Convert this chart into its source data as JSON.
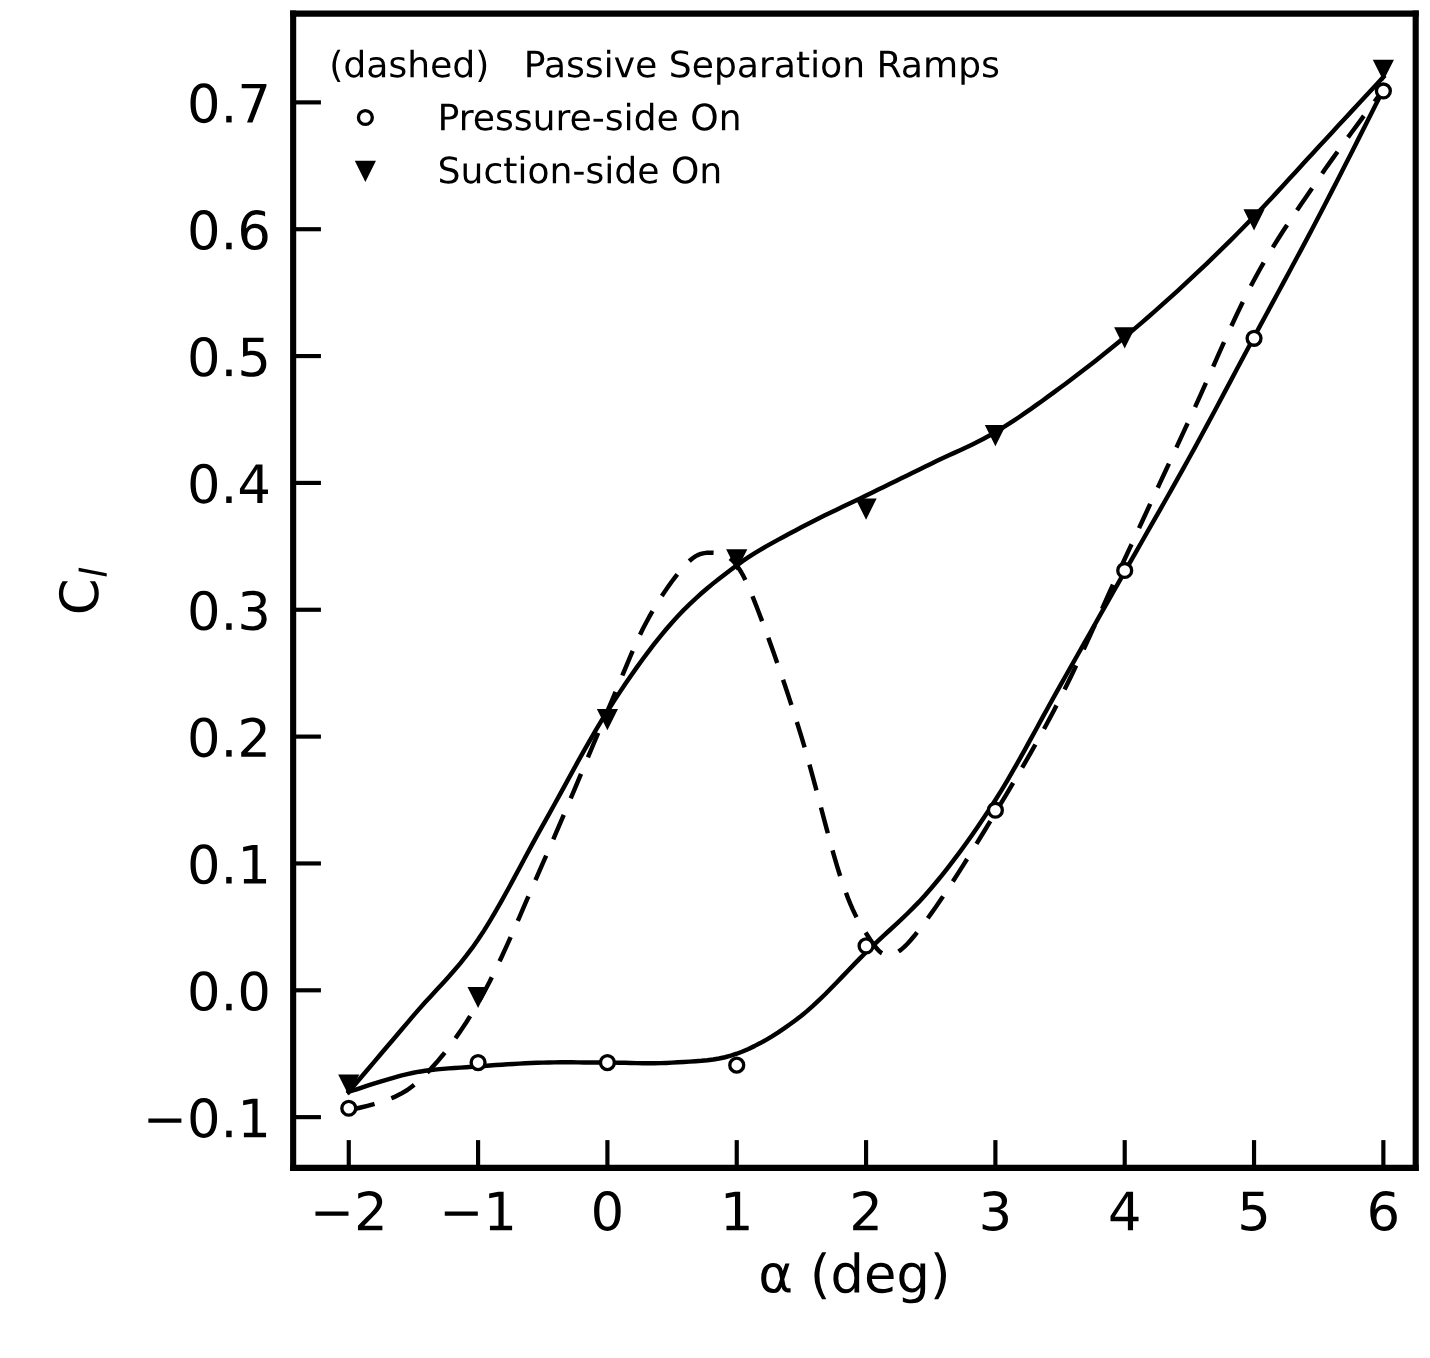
{
  "chart_data": {
    "type": "scatter",
    "xlabel": "α (deg)",
    "ylabel": "C$_{l}$",
    "legend_title": "(dashed)   Passive Separation Ramps",
    "legend": "top left",
    "grid": false,
    "xlim": [
      -2.43,
      6.25
    ],
    "ylim": [
      -0.14,
      0.77
    ],
    "xticks": [
      -2,
      -1,
      0,
      1,
      2,
      3,
      4,
      5,
      6
    ],
    "yticks": [
      {
        "value": -0.1,
        "label": "−0.1"
      },
      {
        "value": 0.0,
        "label": "0.0"
      },
      {
        "value": 0.1,
        "label": "0.1"
      },
      {
        "value": 0.2,
        "label": "0.2"
      },
      {
        "value": 0.3,
        "label": "0.3"
      },
      {
        "value": 0.4,
        "label": "0.4"
      },
      {
        "value": 0.5,
        "label": "0.5"
      },
      {
        "value": 0.6,
        "label": "0.6"
      },
      {
        "value": 0.7,
        "label": "0.7"
      }
    ],
    "x": [
      -2,
      -1,
      0,
      1,
      2,
      3,
      4,
      5,
      6
    ],
    "series": [
      {
        "name": "Pressure-side On",
        "marker": "circle",
        "color": "#000000",
        "values": [
          -0.093,
          -0.057,
          -0.057,
          -0.059,
          0.035,
          0.142,
          0.331,
          0.514,
          0.709
        ]
      },
      {
        "name": "Suction-side On",
        "marker": "triangle",
        "color": "#000000",
        "values": [
          -0.074,
          -0.005,
          0.214,
          0.34,
          0.38,
          0.438,
          0.515,
          0.608,
          0.726
        ]
      },
      {
        "type": "line",
        "line_style": "solid",
        "color": "#000000",
        "x": [
          -2,
          -1.5,
          -1,
          -0.5,
          0,
          0.5,
          1,
          1.5,
          2,
          2.5,
          3,
          3.5,
          4,
          4.5,
          5,
          5.5,
          6
        ],
        "values": [
          -0.08,
          -0.02,
          0.04,
          0.13,
          0.22,
          0.29,
          0.335,
          0.365,
          0.39,
          0.415,
          0.44,
          0.475,
          0.515,
          0.56,
          0.61,
          0.665,
          0.72
        ]
      },
      {
        "type": "line",
        "line_style": "solid",
        "color": "#000000",
        "x": [
          -2,
          -1.5,
          -1,
          -0.5,
          0,
          0.5,
          1,
          1.5,
          2,
          2.5,
          3,
          3.5,
          4,
          4.5,
          5,
          5.5,
          6
        ],
        "values": [
          -0.08,
          -0.065,
          -0.06,
          -0.057,
          -0.057,
          -0.057,
          -0.05,
          -0.02,
          0.03,
          0.08,
          0.15,
          0.24,
          0.33,
          0.42,
          0.515,
          0.61,
          0.71
        ]
      },
      {
        "type": "line",
        "line_style": "dashed",
        "color": "#000000",
        "x": [
          -2,
          -1.5,
          -1,
          -0.5,
          0,
          0.3,
          0.6,
          0.8,
          1,
          1.2,
          1.5,
          1.8,
          2,
          2.2,
          2.5,
          3,
          3.5,
          4,
          4.5,
          5,
          5.5,
          6
        ],
        "values": [
          -0.095,
          -0.075,
          -0.01,
          0.1,
          0.22,
          0.29,
          0.335,
          0.345,
          0.335,
          0.29,
          0.2,
          0.09,
          0.045,
          0.028,
          0.06,
          0.14,
          0.23,
          0.34,
          0.45,
          0.56,
          0.64,
          0.71
        ]
      }
    ]
  }
}
